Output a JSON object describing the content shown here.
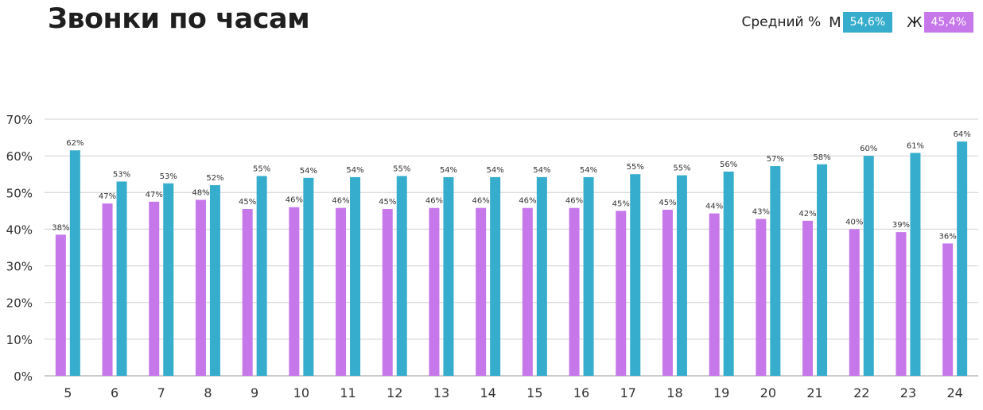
{
  "chart_data": {
    "type": "bar",
    "title": "Звонки по часам",
    "ylim": [
      0,
      70
    ],
    "yticks": [
      0,
      10,
      20,
      30,
      40,
      50,
      60,
      70
    ],
    "ytick_labels": [
      "0%",
      "10%",
      "20%",
      "30%",
      "40%",
      "50%",
      "60%",
      "70%"
    ],
    "grid": true,
    "legend_position": "top-right",
    "categories": [
      "5",
      "6",
      "7",
      "8",
      "9",
      "10",
      "11",
      "12",
      "13",
      "14",
      "15",
      "16",
      "17",
      "18",
      "19",
      "20",
      "21",
      "22",
      "23",
      "24"
    ],
    "series": [
      {
        "name": "Ж",
        "color": "#c678ea",
        "values": [
          38.5,
          47,
          47.5,
          48,
          45.5,
          46,
          45.8,
          45.5,
          45.8,
          45.8,
          45.8,
          45.8,
          45,
          45.3,
          44.3,
          42.8,
          42.3,
          40,
          39.2,
          36.1
        ],
        "labels": [
          "38%",
          "47%",
          "47%",
          "48%",
          "45%",
          "46%",
          "46%",
          "45%",
          "46%",
          "46%",
          "46%",
          "46%",
          "45%",
          "45%",
          "44%",
          "43%",
          "42%",
          "40%",
          "39%",
          "36%"
        ]
      },
      {
        "name": "М",
        "color": "#36adcc",
        "values": [
          61.5,
          53,
          52.5,
          52,
          54.5,
          54,
          54.2,
          54.5,
          54.2,
          54.2,
          54.2,
          54.2,
          55,
          54.7,
          55.7,
          57.2,
          57.7,
          60,
          60.8,
          63.9
        ],
        "labels": [
          "62%",
          "53%",
          "53%",
          "52%",
          "55%",
          "54%",
          "54%",
          "55%",
          "54%",
          "54%",
          "54%",
          "54%",
          "55%",
          "55%",
          "56%",
          "57%",
          "58%",
          "60%",
          "61%",
          "64%"
        ]
      }
    ]
  },
  "legend": {
    "avg_label": "Средний %",
    "male_key": "М",
    "male_value": "54,6%",
    "male_color": "#36adcc",
    "female_key": "Ж",
    "female_value": "45,4%",
    "female_color": "#c678ea"
  }
}
